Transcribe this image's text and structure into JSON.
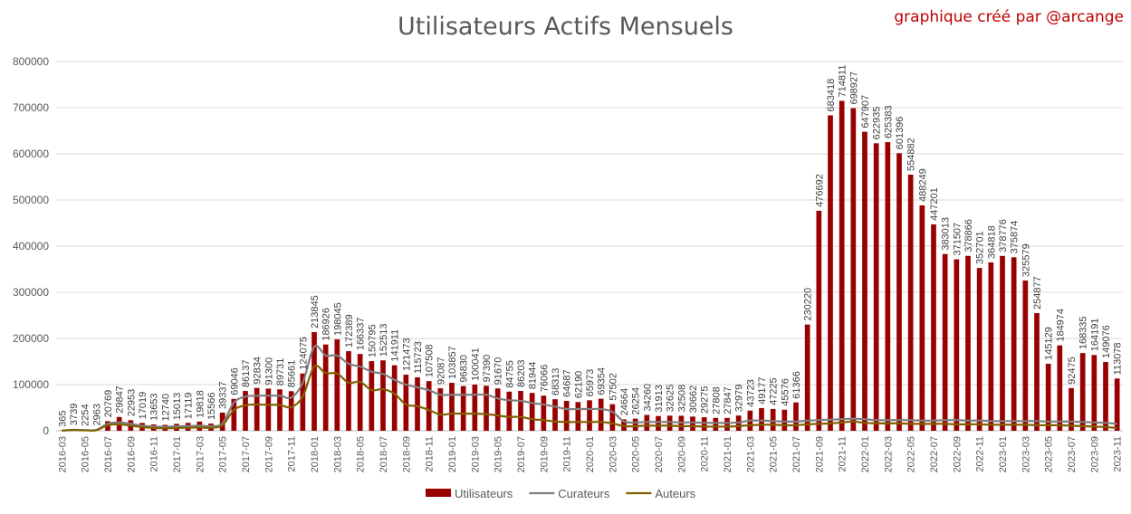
{
  "chart_data": {
    "type": "bar",
    "title": "Utilisateurs Actifs Mensuels",
    "annotation": "graphique créé par  @arcange",
    "xlabel": "",
    "ylabel": "",
    "ylim": [
      0,
      800000
    ],
    "yticks": [
      0,
      100000,
      200000,
      300000,
      400000,
      500000,
      600000,
      700000,
      800000
    ],
    "grid": true,
    "legend": "bottom",
    "colors": {
      "Utilisateurs": "#990000",
      "Curateurs": "#7f7f7f",
      "Auteurs": "#806000"
    },
    "categories": [
      "2016-03",
      "2016-04",
      "2016-05",
      "2016-06",
      "2016-07",
      "2016-08",
      "2016-09",
      "2016-10",
      "2016-11",
      "2016-12",
      "2017-01",
      "2017-02",
      "2017-03",
      "2017-04",
      "2017-05",
      "2017-06",
      "2017-07",
      "2017-08",
      "2017-09",
      "2017-10",
      "2017-11",
      "2017-12",
      "2018-01",
      "2018-02",
      "2018-03",
      "2018-04",
      "2018-05",
      "2018-06",
      "2018-07",
      "2018-08",
      "2018-09",
      "2018-10",
      "2018-11",
      "2018-12",
      "2019-01",
      "2019-02",
      "2019-03",
      "2019-04",
      "2019-05",
      "2019-06",
      "2019-07",
      "2019-08",
      "2019-09",
      "2019-10",
      "2019-11",
      "2019-12",
      "2020-01",
      "2020-02",
      "2020-03",
      "2020-04",
      "2020-05",
      "2020-06",
      "2020-07",
      "2020-08",
      "2020-09",
      "2020-10",
      "2020-11",
      "2020-12",
      "2021-01",
      "2021-02",
      "2021-03",
      "2021-04",
      "2021-05",
      "2021-06",
      "2021-07",
      "2021-08",
      "2021-09",
      "2021-10",
      "2021-11",
      "2021-12",
      "2022-01",
      "2022-02",
      "2022-03",
      "2022-04",
      "2022-05",
      "2022-06",
      "2022-07",
      "2022-08",
      "2022-09",
      "2022-10",
      "2022-11",
      "2022-12",
      "2023-01",
      "2023-02",
      "2023-03",
      "2023-04",
      "2023-05",
      "2023-06",
      "2023-07",
      "2023-08",
      "2023-09",
      "2023-10",
      "2023-11"
    ],
    "series": [
      {
        "name": "Utilisateurs",
        "type": "bar",
        "labels": true,
        "values": [
          365,
          3739,
          2254,
          2963,
          20769,
          29847,
          22953,
          17019,
          13653,
          12740,
          15013,
          17119,
          19818,
          15566,
          39337,
          69046,
          86137,
          92834,
          91300,
          89731,
          85661,
          124075,
          213845,
          186926,
          198045,
          172389,
          166337,
          150795,
          152513,
          141911,
          121473,
          115723,
          107508,
          92087,
          103857,
          96830,
          100041,
          97390,
          91670,
          84755,
          86203,
          81944,
          76066,
          68313,
          64687,
          62190,
          65973,
          69354,
          57502,
          24664,
          26254,
          34260,
          31913,
          32625,
          32508,
          30662,
          29275,
          27808,
          27847,
          32979,
          43723,
          49177,
          47225,
          45576,
          61366,
          230220,
          476692,
          683418,
          714811,
          698927,
          647907,
          622935,
          625383,
          601396,
          554882,
          488249,
          447201,
          383013,
          371507,
          378866,
          352701,
          364818,
          378776,
          375874,
          325579,
          254877,
          145129,
          184974,
          92475,
          168335,
          164191,
          149076,
          113078
        ]
      },
      {
        "name": "Curateurs",
        "type": "line",
        "values": [
          300,
          2000,
          1500,
          1800,
          15000,
          18000,
          15000,
          11000,
          9000,
          8500,
          9500,
          10000,
          11000,
          10000,
          16000,
          61000,
          74000,
          76000,
          76000,
          76000,
          72000,
          104000,
          182000,
          163000,
          163000,
          145000,
          139000,
          128000,
          123000,
          110000,
          100000,
          94000,
          88000,
          78000,
          78000,
          78000,
          78000,
          78000,
          70000,
          66000,
          65000,
          60000,
          57000,
          52000,
          47000,
          47000,
          47000,
          47000,
          41000,
          20000,
          18000,
          19000,
          19000,
          19000,
          18000,
          18000,
          17000,
          17000,
          17000,
          18000,
          22000,
          22000,
          21000,
          20000,
          20000,
          22000,
          23000,
          24000,
          25000,
          26000,
          25000,
          23000,
          23000,
          23000,
          23000,
          22000,
          22000,
          23000,
          23000,
          22000,
          22000,
          21000,
          21000,
          21000,
          21000,
          21000,
          20000,
          20000,
          20000,
          19000,
          18000,
          17000,
          15000
        ]
      },
      {
        "name": "Auteurs",
        "type": "line",
        "values": [
          200,
          1500,
          1000,
          1200,
          12000,
          14000,
          11000,
          8000,
          6000,
          5500,
          6000,
          6500,
          7000,
          6500,
          12000,
          45000,
          55000,
          57000,
          56000,
          56000,
          51000,
          74000,
          139000,
          125000,
          124000,
          104000,
          106000,
          88000,
          90000,
          80000,
          57000,
          53000,
          45000,
          35000,
          37000,
          37000,
          37000,
          36000,
          33000,
          30000,
          30000,
          25000,
          23000,
          20000,
          19000,
          19000,
          19000,
          19000,
          16000,
          10000,
          10000,
          11000,
          11000,
          11000,
          10000,
          10000,
          9000,
          9000,
          9000,
          10000,
          12000,
          13000,
          13000,
          12000,
          12000,
          14000,
          15000,
          16000,
          18000,
          20000,
          17000,
          16000,
          16000,
          16000,
          15000,
          15000,
          15000,
          15000,
          14000,
          14000,
          14000,
          13000,
          13000,
          13000,
          13000,
          12000,
          12000,
          12000,
          11000,
          10000,
          9000,
          8000,
          6000
        ]
      }
    ]
  }
}
